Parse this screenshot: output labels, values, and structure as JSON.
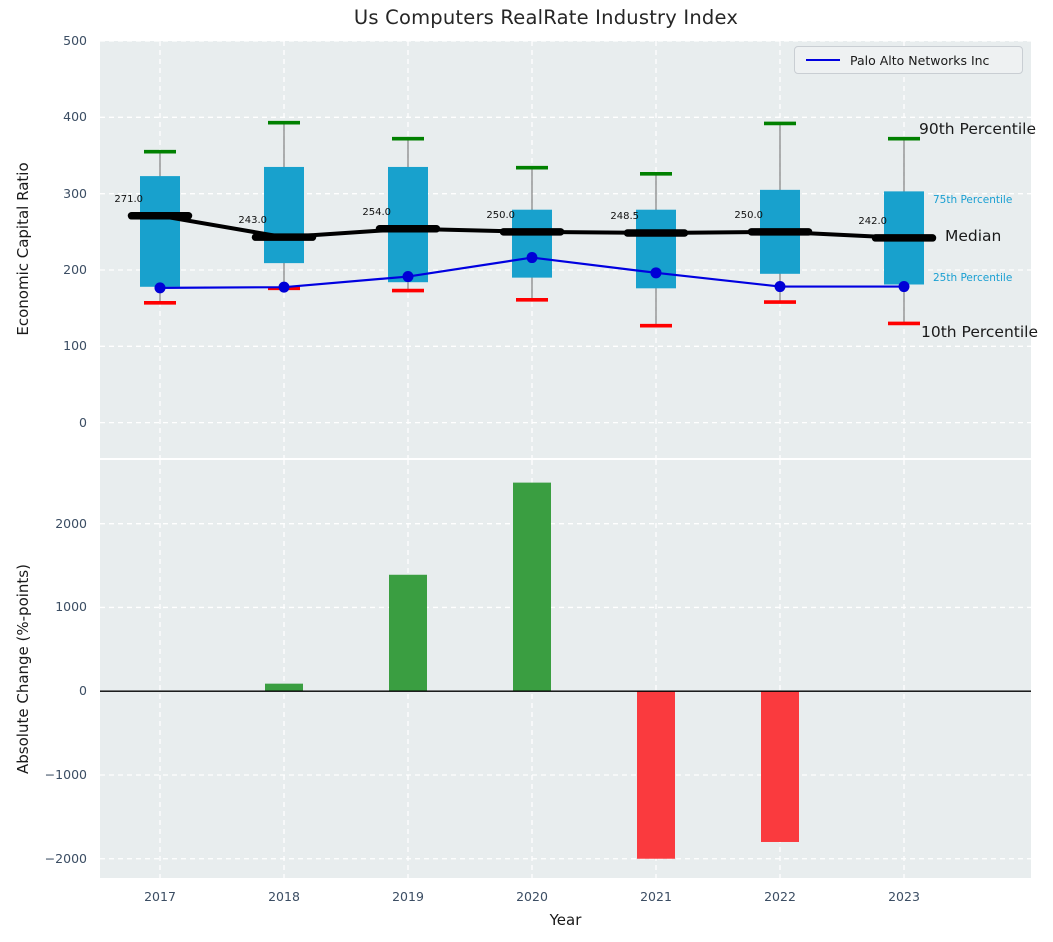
{
  "title": "Us Computers RealRate Industry Index",
  "colors": {
    "plot_background": "#e8edee",
    "gridline": "#ffffff",
    "box_fill": "#18a1cd",
    "whisker": "#808080",
    "cap_90th": "#008000",
    "cap_10th": "#ff0000",
    "median_line": "#000000",
    "company_line": "#0000e0",
    "company_dot": "#0000d6",
    "bar_positive": "#3a9e41",
    "bar_negative": "#fa3a3e",
    "tick_text": "#3b4d63",
    "percentile_label": "#189fd2",
    "zero_line": "#000000"
  },
  "chart_data": [
    {
      "type": "box-percentile-line",
      "panel": "top",
      "ylabel": "Economic Capital Ratio",
      "categories": [
        "2017",
        "2018",
        "2019",
        "2020",
        "2021",
        "2022",
        "2023"
      ],
      "series": [
        {
          "name": "90th Percentile",
          "values": [
            355,
            393,
            372,
            334,
            326,
            392,
            372
          ]
        },
        {
          "name": "75th Percentile",
          "values": [
            323,
            335,
            335,
            279,
            279,
            305,
            303
          ]
        },
        {
          "name": "Median",
          "values": [
            271.0,
            243.0,
            254.0,
            250.0,
            248.5,
            250.0,
            242.0
          ]
        },
        {
          "name": "25th Percentile",
          "values": [
            178,
            209,
            184,
            190,
            176,
            195,
            181
          ]
        },
        {
          "name": "10th Percentile",
          "values": [
            157,
            176,
            173,
            161,
            127,
            158,
            130
          ]
        },
        {
          "name": "Palo Alto Networks Inc",
          "values": [
            176.6,
            177.5,
            191.4,
            216.3,
            196.3,
            178.3,
            178.3
          ]
        }
      ],
      "median_labels": [
        "271.0",
        "243.0",
        "254.0",
        "250.0",
        "248.5",
        "250.0",
        "242.0"
      ],
      "right_annotations": [
        "90th Percentile",
        "75th Percentile",
        "Median",
        "25th Percentile",
        "10th Percentile"
      ],
      "legend": {
        "label": "Palo Alto Networks Inc",
        "position": "upper right"
      },
      "yticks": [
        500,
        400,
        300,
        200,
        100,
        0
      ],
      "ylim": [
        -46,
        500
      ],
      "grid": true
    },
    {
      "type": "bar",
      "panel": "bottom",
      "xlabel": "Year",
      "ylabel": "Absolute Change (%-points)",
      "categories": [
        "2017",
        "2018",
        "2019",
        "2020",
        "2021",
        "2022",
        "2023"
      ],
      "values": [
        null,
        90,
        1390,
        2490,
        -2000,
        -1800,
        null
      ],
      "yticks": [
        2000,
        1000,
        0,
        -1000,
        -2000
      ],
      "ylim": [
        -2230,
        2760
      ],
      "grid": true
    }
  ]
}
